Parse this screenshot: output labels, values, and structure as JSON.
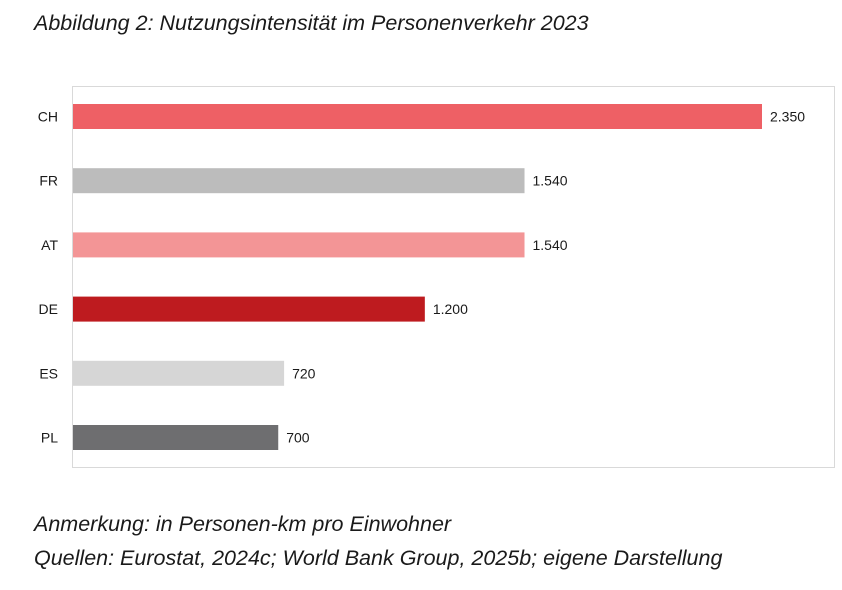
{
  "figure": {
    "title": "Abbildung 2: Nutzungsintensität im Personenverkehr 2023",
    "note": "Anmerkung: in Personen-km pro Einwohner",
    "sources": "Quellen: Eurostat, 2024c; World Bank Group, 2025b; eigene Darstellung"
  },
  "chart_data": {
    "type": "bar",
    "orientation": "horizontal",
    "title": "",
    "xlabel": "",
    "ylabel": "",
    "categories": [
      "CH",
      "FR",
      "AT",
      "DE",
      "ES",
      "PL"
    ],
    "values": [
      2350,
      1540,
      1540,
      1200,
      720,
      700
    ],
    "value_labels": [
      "2.350",
      "1.540",
      "1.540",
      "1.200",
      "720",
      "700"
    ],
    "colors": [
      "#ee6065",
      "#bcbcbc",
      "#f39596",
      "#be1b1f",
      "#d6d6d6",
      "#6e6e70"
    ],
    "xlim": [
      0,
      2350
    ],
    "grid": false,
    "legend": "none"
  }
}
